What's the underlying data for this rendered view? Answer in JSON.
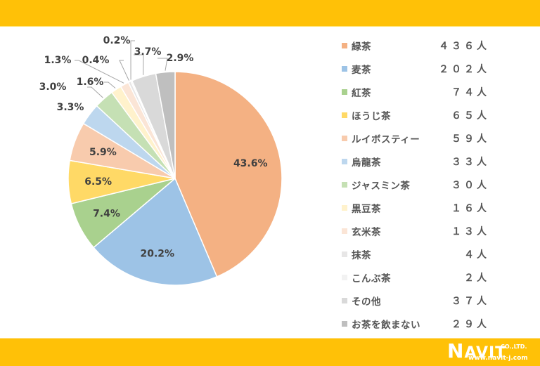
{
  "header": {
    "color": "#ffc107"
  },
  "footer": {
    "color": "#ffc107",
    "logo": {
      "initial": "N",
      "name": "AVIT",
      "suffix": "CO.,LTD.",
      "url": "www.navit-j.com"
    }
  },
  "chart_data": {
    "type": "pie",
    "title": "",
    "total": 1000,
    "start_angle_deg": 0,
    "direction": "clockwise",
    "categories": [
      "緑茶",
      "麦茶",
      "紅茶",
      "ほうじ茶",
      "ルイボスティー",
      "烏龍茶",
      "ジャスミン茶",
      "黒豆茶",
      "玄米茶",
      "抹茶",
      "こんぶ茶",
      "その他",
      "お茶を飲まない"
    ],
    "values": [
      436,
      202,
      74,
      65,
      59,
      33,
      30,
      16,
      13,
      4,
      2,
      37,
      29
    ],
    "percent_labels": [
      "43.6%",
      "20.2%",
      "7.4%",
      "6.5%",
      "5.9%",
      "3.3%",
      "3.0%",
      "1.6%",
      "1.3%",
      "0.4%",
      "0.2%",
      "3.7%",
      "2.9%"
    ],
    "colors": [
      "#f4b183",
      "#9dc3e6",
      "#a9d18e",
      "#ffd966",
      "#f8cbad",
      "#bdd7ee",
      "#c5e0b4",
      "#fff2cc",
      "#fbe5d6",
      "#e7e6e6",
      "#f2f2f2",
      "#d9d9d9",
      "#bfbfbf"
    ],
    "legend_position": "right",
    "unit": "人"
  },
  "legend": {
    "items": [
      {
        "label": "緑茶",
        "count": "４３６人"
      },
      {
        "label": "麦茶",
        "count": "２０２人"
      },
      {
        "label": "紅茶",
        "count": "７４人"
      },
      {
        "label": "ほうじ茶",
        "count": "６５人"
      },
      {
        "label": "ルイボスティー",
        "count": "５９人"
      },
      {
        "label": "烏龍茶",
        "count": "３３人"
      },
      {
        "label": "ジャスミン茶",
        "count": "３０人"
      },
      {
        "label": "黒豆茶",
        "count": "１６人"
      },
      {
        "label": "玄米茶",
        "count": "１３人"
      },
      {
        "label": "抹茶",
        "count": "４人"
      },
      {
        "label": "こんぶ茶",
        "count": "２人"
      },
      {
        "label": "その他",
        "count": "３７人"
      },
      {
        "label": "お茶を飲まない",
        "count": "２９人"
      }
    ]
  }
}
